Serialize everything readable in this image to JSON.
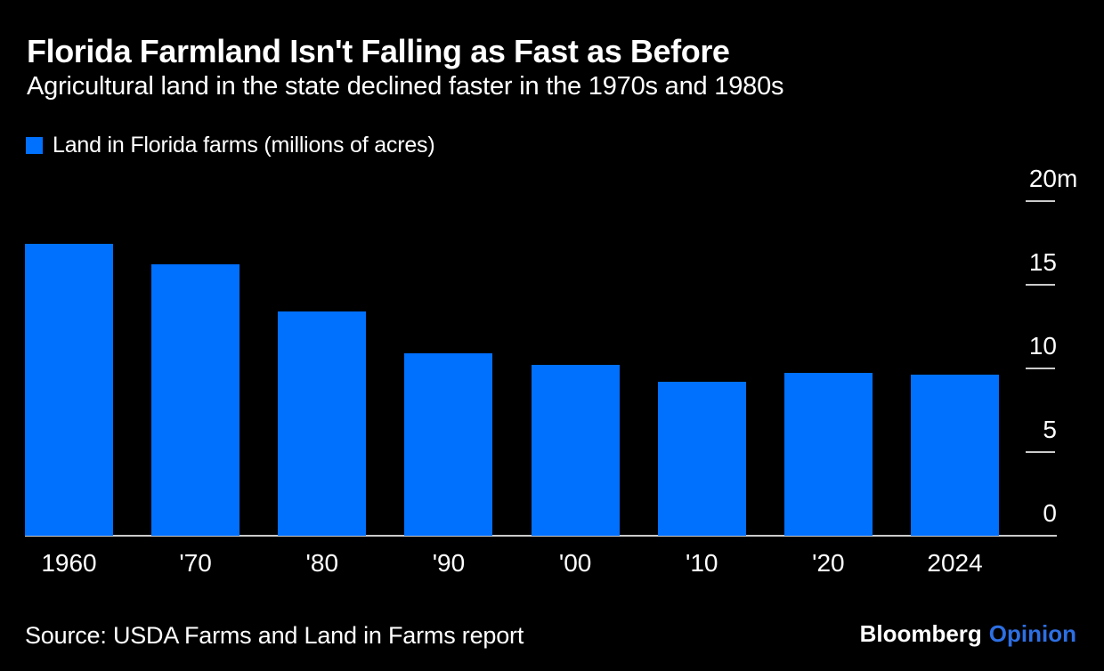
{
  "header": {
    "title": "Florida Farmland Isn't Falling as Fast as Before",
    "subtitle": "Agricultural land in the state declined faster in the 1970s and 1980s"
  },
  "legend": {
    "label": "Land in Florida farms (millions of acres)"
  },
  "chart_data": {
    "type": "bar",
    "categories": [
      "1960",
      "'70",
      "'80",
      "'90",
      "'00",
      "'10",
      "'20",
      "2024"
    ],
    "values": [
      17.4,
      16.2,
      13.4,
      10.9,
      10.2,
      9.2,
      9.7,
      9.6
    ],
    "series_name": "Land in Florida farms (millions of acres)",
    "title": "Florida Farmland Isn't Falling as Fast as Before",
    "subtitle": "Agricultural land in the state declined faster in the 1970s and 1980s",
    "xlabel": "",
    "ylabel": "",
    "ylim": [
      0,
      20
    ],
    "yticks": [
      {
        "value": 20,
        "label": "20m",
        "num": "20",
        "unit": "m"
      },
      {
        "value": 15,
        "label": "15",
        "num": "15",
        "unit": ""
      },
      {
        "value": 10,
        "label": "10",
        "num": "10",
        "unit": ""
      },
      {
        "value": 5,
        "label": "5",
        "num": "5",
        "unit": ""
      },
      {
        "value": 0,
        "label": "0",
        "num": "0",
        "unit": ""
      }
    ],
    "grid": false,
    "legend_position": "top-left"
  },
  "footer": {
    "source": "Source: USDA Farms and Land in Farms report",
    "brand": {
      "name": "Bloomberg",
      "product": "Opinion"
    }
  },
  "colors": {
    "background": "#000000",
    "text": "#ffffff",
    "axis": "#cbcbcb",
    "bar": "#0070ff",
    "brand_product": "#2d6fe3"
  }
}
